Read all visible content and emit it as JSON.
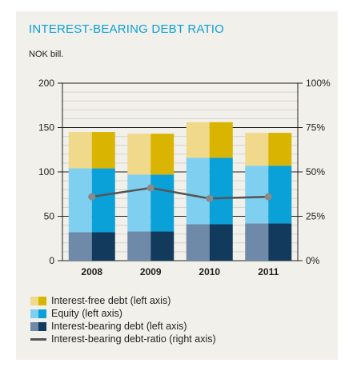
{
  "chart_data": {
    "type": "bar",
    "title": "INTEREST-BEARING DEBT RATIO",
    "subtitle": "NOK bill.",
    "categories": [
      "2008",
      "2009",
      "2010",
      "2011"
    ],
    "series": [
      {
        "name": "Interest-bearing debt (left axis)",
        "values": [
          32,
          33,
          41,
          42
        ],
        "color": "#3a5f8a",
        "axis": "left",
        "kind": "stacked-bar"
      },
      {
        "name": "Equity (left axis)",
        "values": [
          72,
          64,
          75,
          65
        ],
        "color": "#1ab4e8",
        "axis": "left",
        "kind": "stacked-bar"
      },
      {
        "name": "Interest-free debt (left axis)",
        "values": [
          41,
          46,
          40,
          37
        ],
        "color": "#e8c230",
        "axis": "left",
        "kind": "stacked-bar"
      },
      {
        "name": "Interest-bearing debt-ratio (right axis)",
        "values": [
          36,
          41,
          35,
          36
        ],
        "color": "#555555",
        "axis": "right",
        "kind": "line"
      }
    ],
    "left_axis": {
      "ylim": [
        0,
        200
      ],
      "ticks": [
        "0",
        "50",
        "100",
        "150",
        "200"
      ]
    },
    "right_axis": {
      "ylim": [
        0,
        100
      ],
      "ticks": [
        "0%",
        "25%",
        "50%",
        "75%",
        "100%"
      ]
    },
    "legend_order": [
      "Interest-free debt (left axis)",
      "Equity (left axis)",
      "Interest-bearing debt (left axis)",
      "Interest-bearing debt-ratio (right axis)"
    ],
    "legend_position": "bottom-left",
    "grid": true
  }
}
